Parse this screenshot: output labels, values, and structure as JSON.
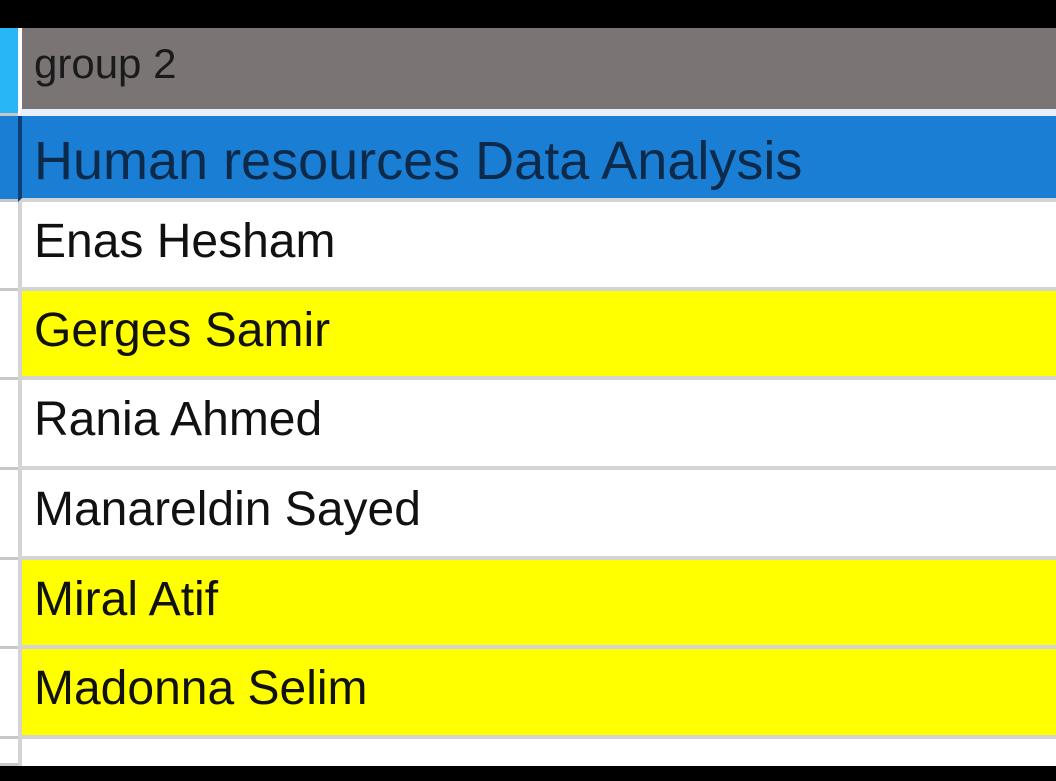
{
  "group_label": "group 2",
  "section_title": "Human resources Data Analysis",
  "members": [
    {
      "name": "Enas Hesham",
      "highlight": false
    },
    {
      "name": "Gerges Samir",
      "highlight": true
    },
    {
      "name": "Rania Ahmed",
      "highlight": false
    },
    {
      "name": "Manareldin Sayed",
      "highlight": false
    },
    {
      "name": "Miral Atif",
      "highlight": true
    },
    {
      "name": "Madonna Selim",
      "highlight": true
    }
  ],
  "colors": {
    "highlight": "#ffff00",
    "header_fill": "#1a7fd4",
    "group_fill": "#7a7474",
    "active_row_marker": "#29b6f6"
  }
}
